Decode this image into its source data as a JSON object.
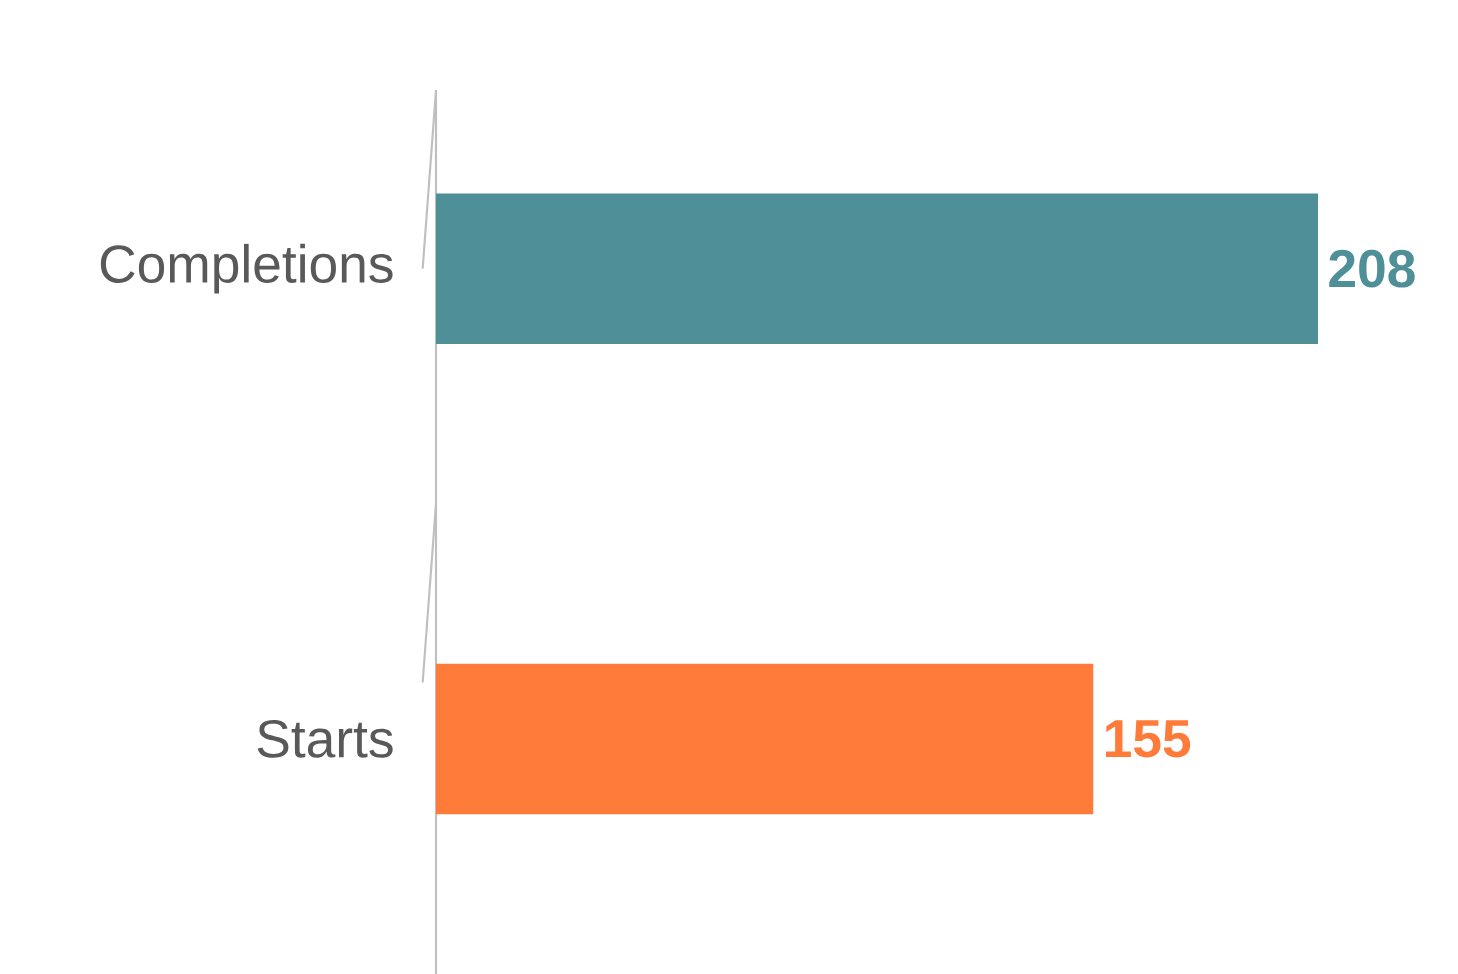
{
  "chart_data": {
    "type": "bar",
    "orientation": "horizontal",
    "categories": [
      "Completions",
      "Starts"
    ],
    "values": [
      208,
      155
    ],
    "colors": [
      "#4e8f98",
      "#fe7b39"
    ],
    "data_labels": true
  }
}
